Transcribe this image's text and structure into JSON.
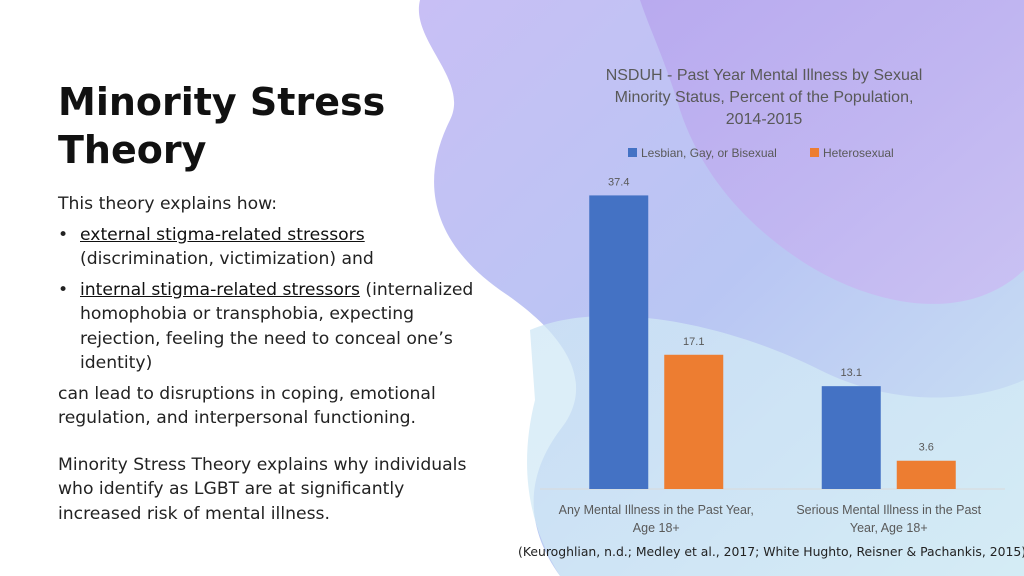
{
  "slide": {
    "title": "Minority Stress Theory",
    "intro": "This theory explains how:",
    "bullets": [
      {
        "bullet": "•",
        "emph": "external stigma-related stressors",
        "rest": " (discrimination, victimization) and"
      },
      {
        "bullet": "•",
        "emph": "internal stigma-related stressors",
        "rest": " (internalized homophobia or transphobia, expecting rejection, feeling the need to conceal one’s identity)"
      }
    ],
    "outcome": "can lead to disruptions in coping, emotional regulation, and interpersonal functioning.",
    "conclusion": "Minority Stress Theory explains why individuals who identify as LGBT are at significantly increased risk of mental illness.",
    "citation": "(Keuroghlian, n.d.; Medley et al., 2017; White Hughto, Reisner & Pachankis, 2015)"
  },
  "colors": {
    "series_lgb": "#4472c4",
    "series_het": "#ed7d31",
    "axis_text": "#595959",
    "title_text": "#595959"
  },
  "chart_data": {
    "type": "bar",
    "title_lines": [
      "NSDUH - Past Year Mental Illness by Sexual",
      "Minority Status, Percent of the Population,",
      "2014-2015"
    ],
    "categories": [
      [
        "Any Mental Illness in the Past Year,",
        "Age 18+"
      ],
      [
        "Serious Mental Illness in the Past",
        "Year, Age 18+"
      ]
    ],
    "series": [
      {
        "name": "Lesbian, Gay, or Bisexual",
        "values": [
          37.4,
          13.1
        ],
        "labels": [
          "37.4",
          "13.1"
        ]
      },
      {
        "name": "Heterosexual",
        "values": [
          17.1,
          3.6
        ],
        "labels": [
          "17.1",
          "3.6"
        ]
      }
    ],
    "ylim": [
      0,
      40
    ],
    "legend": "top",
    "grid": false
  }
}
